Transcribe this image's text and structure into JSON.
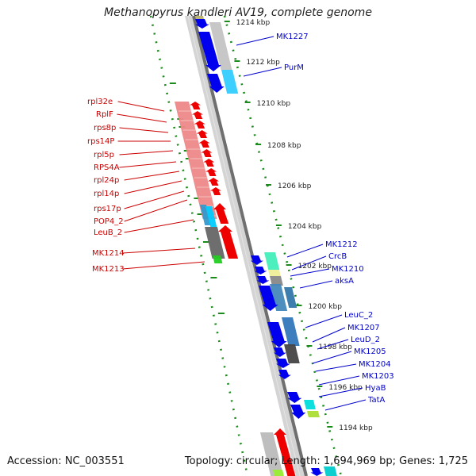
{
  "title": "Methanopyrus kandleri AV19, complete genome",
  "accession": "Accession: NC_003551",
  "summary": "Topology: circular; Length: 1,694,969 bp; Genes: 1,725",
  "colors": {
    "label_forward_strand": "#cc0000",
    "label_reverse_strand": "#0000cc",
    "backbone": "#777777",
    "tick_marks": "#1a8a1a"
  },
  "ruler_ticks": [
    {
      "label": "1214 kbp"
    },
    {
      "label": "1212 kbp"
    },
    {
      "label": "1210 kbp"
    },
    {
      "label": "1208 kbp"
    },
    {
      "label": "1206 kbp"
    },
    {
      "label": "1204 kbp"
    },
    {
      "label": "1202 kbp"
    },
    {
      "label": "1200 kbp"
    },
    {
      "label": "1198 kbp"
    },
    {
      "label": "1196 kbp"
    },
    {
      "label": "1194 kbp"
    }
  ],
  "left_gene_labels": [
    "rpl32e",
    "RplF",
    "rps8p",
    "rps14P",
    "rpl5p",
    "RPS4A",
    "rpl24p",
    "rpl14p",
    "rps17p",
    "POP4_2",
    "LeuB_2",
    "MK1214",
    "MK1213"
  ],
  "right_gene_labels": [
    "MK1227",
    "PurM",
    "MK1212",
    "CrcB",
    "MK1210",
    "aksA",
    "LeuC_2",
    "MK1207",
    "LeuD_2",
    "MK1205",
    "MK1204",
    "MK1203",
    "HyaB",
    "TatA"
  ]
}
